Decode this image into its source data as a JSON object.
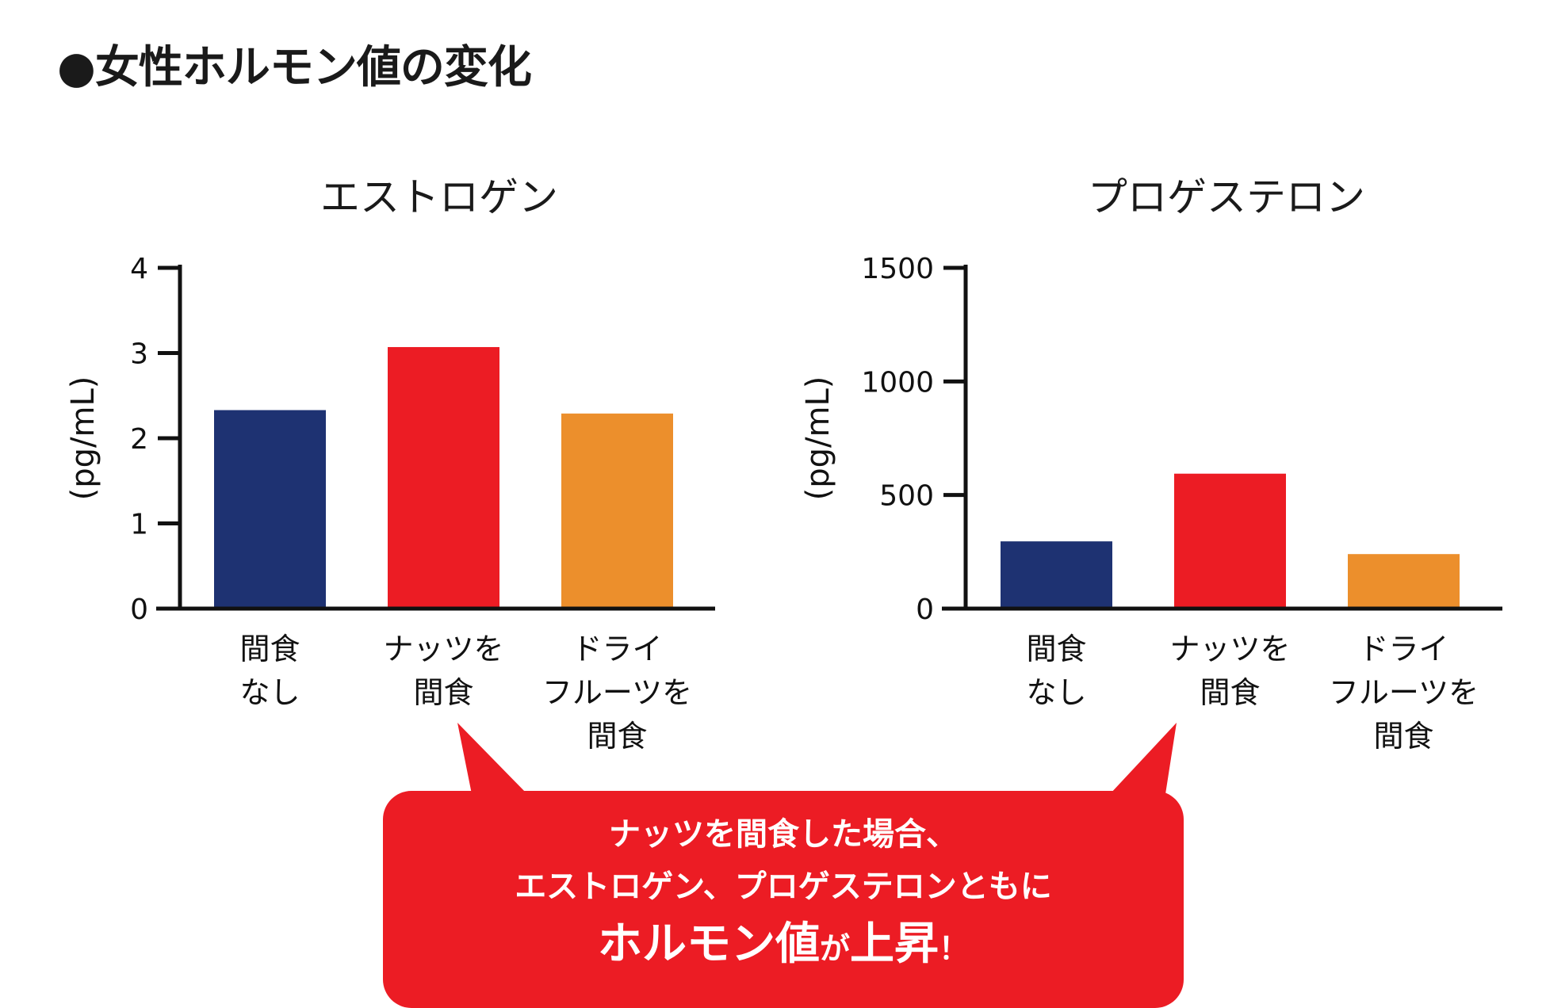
{
  "page_title": "●女性ホルモン値の変化",
  "colors": {
    "navy": "#1e3272",
    "red": "#ec1c24",
    "orange": "#ec8f2c",
    "axis": "#111111",
    "callout_bg": "#ec1c24"
  },
  "chart_data": [
    {
      "type": "bar",
      "title": "エストロゲン",
      "ylabel": "(pg/mL)",
      "xlabel": "",
      "categories": [
        [
          "間食",
          "なし"
        ],
        [
          "ナッツを",
          "間食"
        ],
        [
          "ドライ",
          "フルーツを",
          "間食"
        ]
      ],
      "values": [
        2.33,
        3.07,
        2.29
      ],
      "bar_colors": [
        "#1e3272",
        "#ec1c24",
        "#ec8f2c"
      ],
      "ylim": [
        0,
        4
      ],
      "yticks": [
        0,
        1,
        2,
        3,
        4
      ],
      "grid": false
    },
    {
      "type": "bar",
      "title": "プロゲステロン",
      "ylabel": "(pg/mL)",
      "xlabel": "",
      "categories": [
        [
          "間食",
          "なし"
        ],
        [
          "ナッツを",
          "間食"
        ],
        [
          "ドライ",
          "フルーツを",
          "間食"
        ]
      ],
      "values": [
        296,
        594,
        240
      ],
      "bar_colors": [
        "#1e3272",
        "#ec1c24",
        "#ec8f2c"
      ],
      "ylim": [
        0,
        1500
      ],
      "yticks": [
        0,
        500,
        1000,
        1500
      ],
      "grid": false
    }
  ],
  "callout": {
    "line1": "ナッツを間食した場合、",
    "line2": "エストロゲン、プロゲステロンともに",
    "line3_a": "ホルモン値",
    "line3_b": "が",
    "line3_c": "上昇",
    "line3_d": "！"
  }
}
